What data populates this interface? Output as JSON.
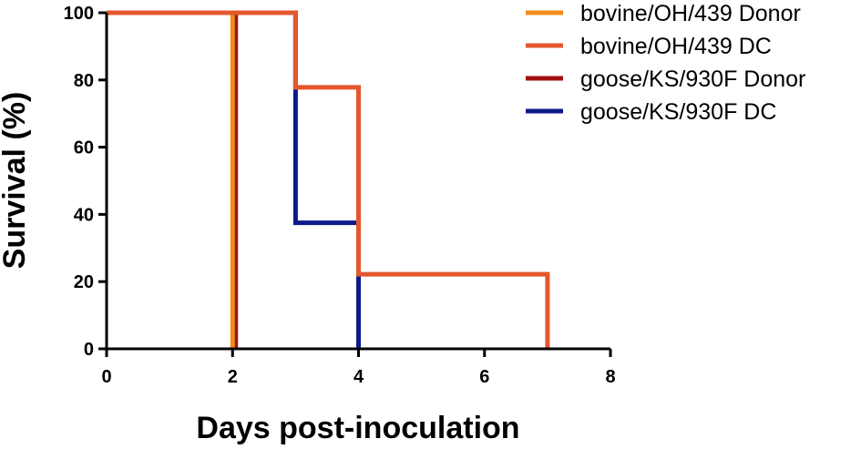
{
  "chart_data": {
    "type": "line",
    "subtype": "kaplan-meier step",
    "title": "",
    "xlabel": "Days post-inoculation",
    "ylabel": "Survival (%)",
    "xlim": [
      0,
      8
    ],
    "ylim": [
      0,
      100
    ],
    "xticks": [
      0,
      2,
      4,
      6,
      8
    ],
    "yticks": [
      0,
      20,
      40,
      60,
      80,
      100
    ],
    "grid": false,
    "legend_position": "top-right",
    "series": [
      {
        "name": "bovine/OH/439 Donor",
        "color": "#F28C1A",
        "steps": [
          [
            0,
            100
          ],
          [
            2,
            100
          ],
          [
            2,
            0
          ]
        ]
      },
      {
        "name": "bovine/OH/439 DC",
        "color": "#E4572E",
        "steps": [
          [
            0,
            100
          ],
          [
            3,
            100
          ],
          [
            3,
            77.8
          ],
          [
            4,
            77.8
          ],
          [
            4,
            22.2
          ],
          [
            7,
            22.2
          ],
          [
            7,
            0
          ]
        ]
      },
      {
        "name": "goose/KS/930F Donor",
        "color": "#A01010",
        "steps": [
          [
            0,
            100
          ],
          [
            2.05,
            100
          ],
          [
            2.05,
            0
          ]
        ]
      },
      {
        "name": "goose/KS/930F DC",
        "color": "#0D1A8A",
        "steps": [
          [
            0,
            100
          ],
          [
            3,
            100
          ],
          [
            3,
            37.5
          ],
          [
            4,
            37.5
          ],
          [
            4,
            0
          ]
        ]
      }
    ],
    "draw_order": [
      3,
      2,
      0,
      1
    ]
  }
}
